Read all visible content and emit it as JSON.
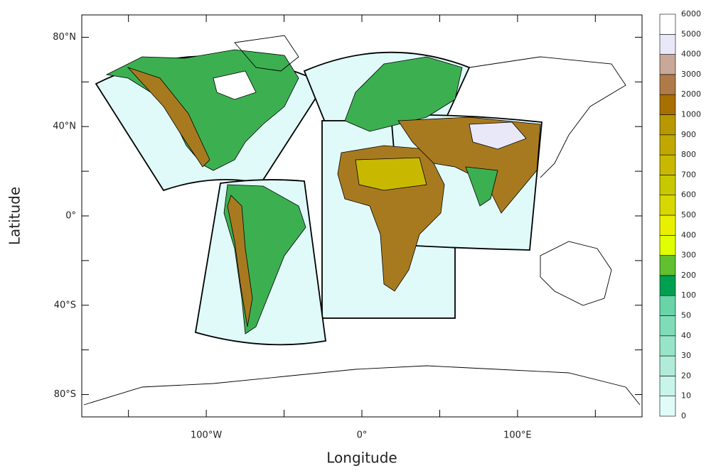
{
  "map": {
    "xlabel": "Longitude",
    "ylabel": "Latitude",
    "xlim": [
      -180,
      180
    ],
    "ylim": [
      -90,
      90
    ],
    "xticks": [
      {
        "value": -100,
        "label": "100°W"
      },
      {
        "value": 0,
        "label": "0°"
      },
      {
        "value": 100,
        "label": "100°E"
      }
    ],
    "xminor": [
      -150,
      -50,
      50,
      150
    ],
    "yticks": [
      {
        "value": 80,
        "label": "80°N"
      },
      {
        "value": 40,
        "label": "40°N"
      },
      {
        "value": 0,
        "label": "0°"
      },
      {
        "value": -40,
        "label": "40°S"
      },
      {
        "value": -80,
        "label": "80°S"
      }
    ],
    "yminor": [
      60,
      20,
      -20,
      -60
    ],
    "colorbar": {
      "levels": [
        0,
        10,
        20,
        30,
        40,
        50,
        100,
        200,
        300,
        400,
        500,
        600,
        700,
        800,
        900,
        1000,
        2000,
        3000,
        4000,
        5000,
        6000
      ],
      "colors": [
        "#e0fbf8",
        "#c8f4ea",
        "#b0ecd9",
        "#98e4c8",
        "#80dcb8",
        "#68d4a8",
        "#00a050",
        "#60c030",
        "#e0ff00",
        "#e8f000",
        "#d8d800",
        "#c8c800",
        "#c8b800",
        "#c0a800",
        "#b89800",
        "#a87000",
        "#b07a48",
        "#c8a898",
        "#e8e8f8",
        "#ffffff"
      ]
    }
  }
}
